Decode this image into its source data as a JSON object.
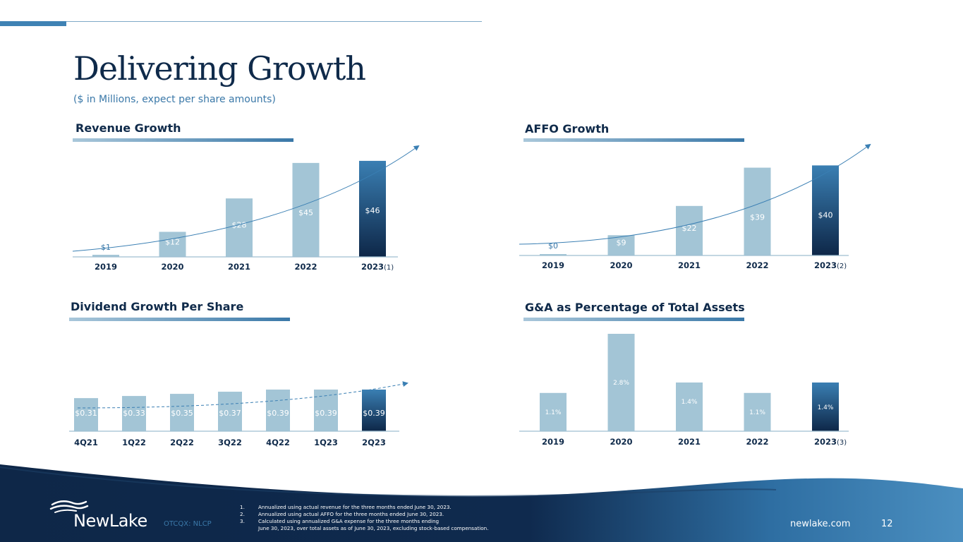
{
  "title": "Delivering Growth",
  "subtitle": "($ in Millions, expect per share amounts)",
  "charts": [
    {
      "id": "revenue",
      "heading": "Revenue Growth",
      "chart_data": {
        "type": "bar",
        "categories": [
          "2019",
          "2020",
          "2021",
          "2022",
          "2023"
        ],
        "values": [
          1,
          12,
          28,
          45,
          46
        ],
        "labels": [
          "$1",
          "$12",
          "$28",
          "$45",
          "$46"
        ],
        "ylim": [
          0,
          48
        ],
        "last_category_note": "(1)",
        "highlight_last": true,
        "trend_arrow": true,
        "grid": false
      }
    },
    {
      "id": "affo",
      "heading": "AFFO Growth",
      "chart_data": {
        "type": "bar",
        "categories": [
          "2019",
          "2020",
          "2021",
          "2022",
          "2023"
        ],
        "values": [
          0,
          9,
          22,
          39,
          40
        ],
        "labels": [
          "$0",
          "$9",
          "$22",
          "$39",
          "$40"
        ],
        "ylim": [
          0,
          42
        ],
        "last_category_note": "(2)",
        "highlight_last": true,
        "trend_arrow": true,
        "grid": false
      }
    },
    {
      "id": "dividend",
      "heading": "Dividend Growth Per Share",
      "chart_data": {
        "type": "bar",
        "categories": [
          "4Q21",
          "1Q22",
          "2Q22",
          "3Q22",
          "4Q22",
          "1Q23",
          "2Q23"
        ],
        "values": [
          0.31,
          0.33,
          0.35,
          0.37,
          0.39,
          0.39,
          0.39
        ],
        "labels": [
          "$0.31",
          "$0.33",
          "$0.35",
          "$0.37",
          "$0.39",
          "$0.39",
          "$0.39"
        ],
        "ylim": [
          0,
          0.41
        ],
        "last_category_note": "",
        "highlight_last": true,
        "trend_arrow": true,
        "grid": false
      }
    },
    {
      "id": "ga",
      "heading": "G&A as Percentage of Total Assets",
      "chart_data": {
        "type": "bar",
        "categories": [
          "2019",
          "2020",
          "2021",
          "2022",
          "2023"
        ],
        "values": [
          1.1,
          2.8,
          1.4,
          1.1,
          1.4
        ],
        "labels": [
          "1.1%",
          "2.8%",
          "1.4%",
          "1.1%",
          "1.4%"
        ],
        "ylim": [
          0,
          2.8
        ],
        "last_category_note": "(3)",
        "highlight_last": true,
        "trend_arrow": false,
        "grid": false
      }
    }
  ],
  "colors": {
    "bar": "#a3c5d6",
    "bar_highlight_top": "#3a7fb3",
    "bar_highlight_bottom": "#0e2748",
    "label": "#ffffff",
    "label_dark": "#3a78a8",
    "axis": "#9fbfd1",
    "category": "#0f2a4a",
    "trend": "#3a7fb3",
    "navy": "#0f2a4a"
  },
  "footer": {
    "logo": "NewLake",
    "ticker": "OTCQX: NLCP",
    "footnotes": [
      {
        "num": "1.",
        "text": "Annualized using actual revenue for the three months ended June 30, 2023."
      },
      {
        "num": "2.",
        "text": "Annualized using actual AFFO for the three months ended June 30, 2023."
      },
      {
        "num": "3.",
        "text": "Calculated using annualized G&A expense for the three months ending"
      }
    ],
    "footnote_cont": "June 30, 2023, over total assets as of June 30, 2023, excluding stock-based compensation.",
    "website": "newlake.com",
    "page": "12"
  }
}
